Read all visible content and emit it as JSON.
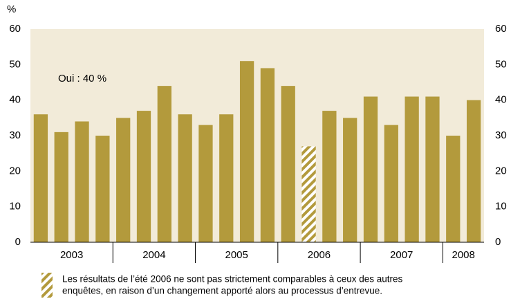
{
  "chart_data": {
    "type": "bar",
    "unit_label": "%",
    "annotation": "Oui : 40 %",
    "categories": [
      null,
      null,
      null,
      null,
      null,
      null,
      null,
      null,
      null,
      null,
      null,
      null,
      null,
      null,
      null,
      null,
      null,
      null,
      null,
      null,
      null,
      null
    ],
    "values": [
      36,
      31,
      34,
      30,
      35,
      37,
      44,
      36,
      33,
      36,
      51,
      49,
      44,
      27,
      37,
      35,
      41,
      33,
      41,
      41,
      30,
      40
    ],
    "groups": [
      {
        "label": "2003",
        "size": 4
      },
      {
        "label": "2004",
        "size": 4
      },
      {
        "label": "2005",
        "size": 4
      },
      {
        "label": "2006",
        "size": 4
      },
      {
        "label": "2007",
        "size": 4
      },
      {
        "label": "2008",
        "size": 2
      }
    ],
    "hatched_index": 13,
    "color": "#b39a3c",
    "background": "#f2ebd9",
    "ylim": [
      0,
      60
    ],
    "yticks": [
      0,
      10,
      20,
      30,
      40,
      50,
      60
    ],
    "note_lines": [
      "Les résultats de l’été 2006 ne sont pas strictement comparables à ceux des autres",
      "enquêtes, en raison d’un changement apporté alors au processus d’entrevue."
    ]
  }
}
